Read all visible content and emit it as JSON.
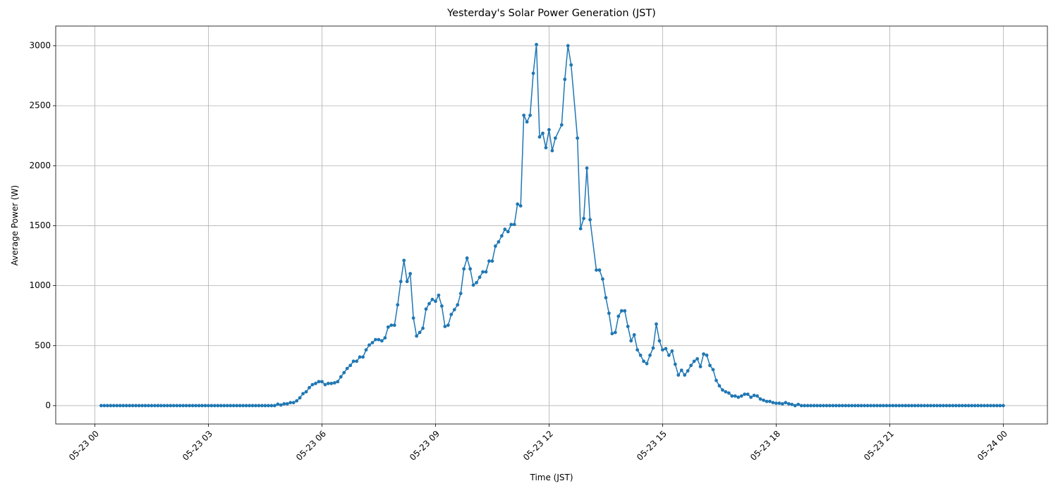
{
  "chart_data": {
    "type": "line",
    "title": "Yesterday's Solar Power Generation (JST)",
    "x_label": "Time (JST)",
    "y_label": "Average Power (W)",
    "color": "#1f77b4",
    "grid": true,
    "xlim": [
      -62,
      1510
    ],
    "xticks": [
      {
        "value": 0,
        "label": "05-23 00"
      },
      {
        "value": 180,
        "label": "05-23 03"
      },
      {
        "value": 360,
        "label": "05-23 06"
      },
      {
        "value": 540,
        "label": "05-23 09"
      },
      {
        "value": 720,
        "label": "05-23 12"
      },
      {
        "value": 900,
        "label": "05-23 15"
      },
      {
        "value": 1080,
        "label": "05-23 18"
      },
      {
        "value": 1260,
        "label": "05-23 21"
      },
      {
        "value": 1440,
        "label": "05-24 00"
      }
    ],
    "ylim": [
      -153,
      3164
    ],
    "yticks": [
      0,
      500,
      1000,
      1500,
      2000,
      2500,
      3000
    ],
    "x": [
      10,
      15,
      20,
      25,
      30,
      35,
      40,
      45,
      50,
      55,
      60,
      65,
      70,
      75,
      80,
      85,
      90,
      95,
      100,
      105,
      110,
      115,
      120,
      125,
      130,
      135,
      140,
      145,
      150,
      155,
      160,
      165,
      170,
      175,
      180,
      185,
      190,
      195,
      200,
      205,
      210,
      215,
      220,
      225,
      230,
      235,
      240,
      245,
      250,
      255,
      260,
      265,
      270,
      275,
      280,
      285,
      290,
      295,
      300,
      305,
      310,
      315,
      320,
      325,
      330,
      335,
      340,
      345,
      350,
      355,
      360,
      365,
      370,
      375,
      380,
      385,
      390,
      395,
      400,
      405,
      410,
      415,
      420,
      425,
      430,
      435,
      440,
      445,
      450,
      455,
      460,
      465,
      470,
      475,
      480,
      485,
      490,
      495,
      500,
      505,
      510,
      515,
      520,
      525,
      530,
      535,
      540,
      545,
      550,
      555,
      560,
      565,
      570,
      575,
      580,
      585,
      590,
      595,
      600,
      605,
      610,
      615,
      620,
      625,
      630,
      635,
      640,
      645,
      650,
      655,
      660,
      665,
      670,
      675,
      680,
      685,
      690,
      695,
      700,
      705,
      710,
      715,
      720,
      725,
      730,
      740,
      745,
      750,
      755,
      765,
      770,
      775,
      780,
      785,
      795,
      800,
      805,
      810,
      815,
      820,
      825,
      830,
      835,
      840,
      845,
      850,
      855,
      860,
      865,
      870,
      875,
      880,
      885,
      890,
      895,
      900,
      905,
      910,
      915,
      920,
      925,
      930,
      935,
      940,
      945,
      950,
      955,
      960,
      965,
      970,
      975,
      980,
      985,
      990,
      995,
      1000,
      1005,
      1010,
      1015,
      1020,
      1025,
      1030,
      1035,
      1040,
      1045,
      1050,
      1055,
      1060,
      1065,
      1070,
      1075,
      1080,
      1085,
      1090,
      1095,
      1100,
      1105,
      1110,
      1115,
      1120,
      1125,
      1130,
      1135,
      1140,
      1145,
      1150,
      1155,
      1160,
      1165,
      1170,
      1175,
      1180,
      1185,
      1190,
      1195,
      1200,
      1205,
      1210,
      1215,
      1220,
      1225,
      1230,
      1235,
      1240,
      1245,
      1250,
      1255,
      1260,
      1265,
      1270,
      1275,
      1280,
      1285,
      1290,
      1295,
      1300,
      1305,
      1310,
      1315,
      1320,
      1325,
      1330,
      1335,
      1340,
      1345,
      1350,
      1355,
      1360,
      1365,
      1370,
      1375,
      1380,
      1385,
      1390,
      1395,
      1400,
      1405,
      1410,
      1415,
      1420,
      1425,
      1430,
      1435,
      1440
    ],
    "values": [
      0,
      0,
      0,
      0,
      0,
      0,
      0,
      0,
      0,
      0,
      0,
      0,
      0,
      0,
      0,
      0,
      0,
      0,
      0,
      0,
      0,
      0,
      0,
      0,
      0,
      0,
      0,
      0,
      0,
      0,
      0,
      0,
      0,
      0,
      0,
      0,
      0,
      0,
      0,
      0,
      0,
      0,
      0,
      0,
      0,
      0,
      0,
      0,
      0,
      0,
      0,
      0,
      0,
      0,
      0,
      0,
      12,
      5,
      15,
      15,
      25,
      25,
      40,
      65,
      100,
      115,
      150,
      175,
      185,
      200,
      200,
      175,
      185,
      185,
      190,
      200,
      240,
      275,
      310,
      335,
      370,
      370,
      405,
      405,
      465,
      505,
      525,
      550,
      550,
      540,
      565,
      655,
      670,
      670,
      840,
      1035,
      1210,
      1035,
      1100,
      730,
      580,
      610,
      645,
      805,
      850,
      885,
      870,
      920,
      830,
      660,
      670,
      760,
      800,
      840,
      935,
      1140,
      1230,
      1140,
      1005,
      1025,
      1070,
      1115,
      1115,
      1205,
      1205,
      1330,
      1365,
      1415,
      1470,
      1450,
      1510,
      1510,
      1680,
      1665,
      2420,
      2365,
      2420,
      2770,
      3010,
      2240,
      2270,
      2150,
      2300,
      2125,
      2230,
      2340,
      2720,
      3000,
      2840,
      2230,
      1475,
      1560,
      1980,
      1550,
      1130,
      1130,
      1055,
      900,
      770,
      600,
      610,
      745,
      790,
      790,
      660,
      540,
      590,
      465,
      420,
      370,
      350,
      420,
      480,
      680,
      540,
      465,
      475,
      420,
      455,
      345,
      255,
      295,
      255,
      290,
      335,
      370,
      390,
      325,
      430,
      420,
      335,
      300,
      210,
      165,
      130,
      115,
      105,
      80,
      80,
      70,
      80,
      95,
      95,
      70,
      85,
      80,
      55,
      45,
      35,
      35,
      25,
      20,
      20,
      15,
      25,
      15,
      10,
      0,
      10,
      0,
      0,
      0,
      0,
      0,
      0,
      0,
      0,
      0,
      0,
      0,
      0,
      0,
      0,
      0,
      0,
      0,
      0,
      0,
      0,
      0,
      0,
      0,
      0,
      0,
      0,
      0,
      0,
      0,
      0,
      0,
      0,
      0,
      0,
      0,
      0,
      0,
      0,
      0,
      0,
      0,
      0,
      0,
      0,
      0,
      0,
      0,
      0,
      0,
      0,
      0,
      0,
      0,
      0,
      0,
      0,
      0,
      0,
      0,
      0,
      0,
      0,
      0,
      0,
      0
    ]
  }
}
